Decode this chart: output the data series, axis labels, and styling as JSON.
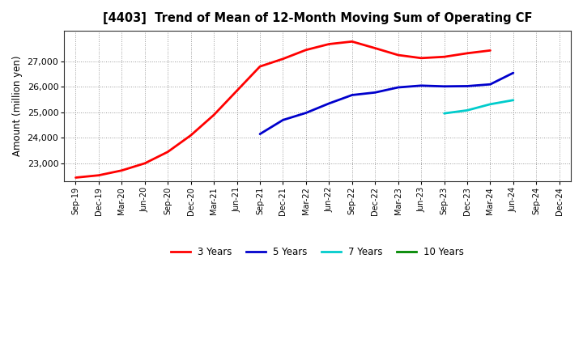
{
  "title": "[4403]  Trend of Mean of 12-Month Moving Sum of Operating CF",
  "ylabel": "Amount (million yen)",
  "ylim": [
    22300,
    28200
  ],
  "yticks": [
    23000,
    24000,
    25000,
    26000,
    27000
  ],
  "background_color": "#ffffff",
  "plot_bg_color": "#ffffff",
  "grid_color": "#999999",
  "x_labels": [
    "Sep-19",
    "Dec-19",
    "Mar-20",
    "Jun-20",
    "Sep-20",
    "Dec-20",
    "Mar-21",
    "Jun-21",
    "Sep-21",
    "Dec-21",
    "Mar-22",
    "Jun-22",
    "Sep-22",
    "Dec-22",
    "Mar-23",
    "Jun-23",
    "Sep-23",
    "Dec-23",
    "Mar-24",
    "Jun-24",
    "Sep-24",
    "Dec-24"
  ],
  "series": {
    "3 Years": {
      "color": "#ff0000",
      "data_x": [
        0,
        1,
        2,
        3,
        4,
        5,
        6,
        7,
        8,
        9,
        10,
        11,
        12,
        13,
        14,
        15,
        16,
        17,
        18
      ],
      "data_y": [
        22440,
        22530,
        22720,
        23000,
        23450,
        24100,
        24900,
        25850,
        26800,
        27100,
        27450,
        27680,
        27780,
        27520,
        27250,
        27130,
        27180,
        27320,
        27430
      ]
    },
    "5 Years": {
      "color": "#0000cc",
      "data_x": [
        8,
        9,
        10,
        11,
        12,
        13,
        14,
        15,
        16,
        17,
        18,
        19
      ],
      "data_y": [
        24150,
        24700,
        24980,
        25350,
        25680,
        25780,
        25980,
        26050,
        26020,
        26030,
        26100,
        26550
      ]
    },
    "7 Years": {
      "color": "#00cccc",
      "data_x": [
        16,
        17,
        18,
        19
      ],
      "data_y": [
        24960,
        25080,
        25320,
        25480
      ]
    },
    "10 Years": {
      "color": "#008800",
      "data_x": [],
      "data_y": []
    }
  },
  "legend_labels": [
    "3 Years",
    "5 Years",
    "7 Years",
    "10 Years"
  ]
}
